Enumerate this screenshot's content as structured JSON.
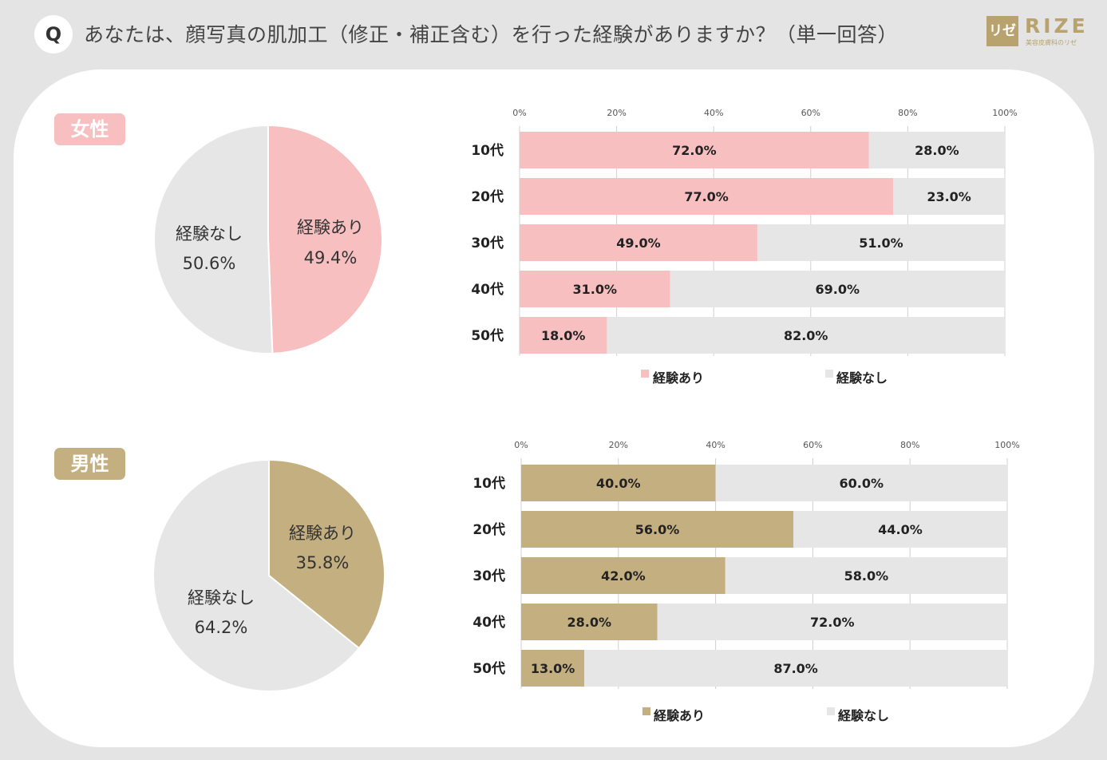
{
  "header": {
    "q_badge": "Q",
    "question": "あなたは、顔写真の肌加工（修正・補正含む）を行った経験がありますか？（単一回答）"
  },
  "logo": {
    "mark": "リゼ",
    "name": "RIZE",
    "sub": "美容皮膚科のリゼ"
  },
  "colors": {
    "female": "#f7bfbf",
    "male": "#c4af80",
    "none": "#e6e6e6"
  },
  "chart_data": [
    {
      "id": "female-pie",
      "type": "pie",
      "group_label": "女性",
      "slices": [
        {
          "label": "経験あり",
          "value": 49.4,
          "display": "49.4%"
        },
        {
          "label": "経験なし",
          "value": 50.6,
          "display": "50.6%"
        }
      ]
    },
    {
      "id": "female-bar",
      "type": "bar",
      "stacked": true,
      "orientation": "horizontal",
      "categories": [
        "10代",
        "20代",
        "30代",
        "40代",
        "50代"
      ],
      "series": [
        {
          "name": "経験あり",
          "values": [
            72.0,
            77.0,
            49.0,
            31.0,
            18.0
          ],
          "labels": [
            "72.0%",
            "77.0%",
            "49.0%",
            "31.0%",
            "18.0%"
          ]
        },
        {
          "name": "経験なし",
          "values": [
            28.0,
            23.0,
            51.0,
            69.0,
            82.0
          ],
          "labels": [
            "28.0%",
            "23.0%",
            "51.0%",
            "69.0%",
            "82.0%"
          ]
        }
      ],
      "xticks": [
        "0%",
        "20%",
        "40%",
        "60%",
        "80%",
        "100%"
      ],
      "xlim": [
        0,
        100
      ],
      "legend": "bottom"
    },
    {
      "id": "male-pie",
      "type": "pie",
      "group_label": "男性",
      "slices": [
        {
          "label": "経験あり",
          "value": 35.8,
          "display": "35.8%"
        },
        {
          "label": "経験なし",
          "value": 64.2,
          "display": "64.2%"
        }
      ]
    },
    {
      "id": "male-bar",
      "type": "bar",
      "stacked": true,
      "orientation": "horizontal",
      "categories": [
        "10代",
        "20代",
        "30代",
        "40代",
        "50代"
      ],
      "series": [
        {
          "name": "経験あり",
          "values": [
            40.0,
            56.0,
            42.0,
            28.0,
            13.0
          ],
          "labels": [
            "40.0%",
            "56.0%",
            "42.0%",
            "28.0%",
            "13.0%"
          ]
        },
        {
          "name": "経験なし",
          "values": [
            60.0,
            44.0,
            58.0,
            72.0,
            87.0
          ],
          "labels": [
            "60.0%",
            "44.0%",
            "58.0%",
            "72.0%",
            "87.0%"
          ]
        }
      ],
      "xticks": [
        "0%",
        "20%",
        "40%",
        "60%",
        "80%",
        "100%"
      ],
      "xlim": [
        0,
        100
      ],
      "legend": "bottom"
    }
  ]
}
